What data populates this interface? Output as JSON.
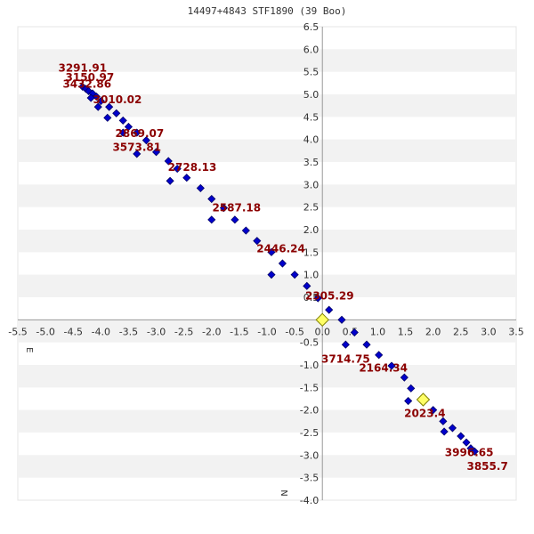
{
  "chart_data": {
    "type": "scatter",
    "title": "14497+4843 STF1890 (39 Boo)",
    "xlabel": "E",
    "ylabel": "N",
    "xlim": [
      -5.5,
      3.5
    ],
    "ylim": [
      -4.0,
      6.5
    ],
    "x_ticks": [
      "-5.5",
      "-5.0",
      "-4.5",
      "-4.0",
      "-3.5",
      "-3.0",
      "-2.5",
      "-2.0",
      "-1.5",
      "-1.0",
      "-0.5",
      "0.0",
      "0.5",
      "1.0",
      "1.5",
      "2.0",
      "2.5",
      "3.0",
      "3.5"
    ],
    "y_ticks": [
      "6.5",
      "6.0",
      "5.5",
      "5.0",
      "4.5",
      "4.0",
      "3.5",
      "3.0",
      "2.5",
      "2.0",
      "1.5",
      "1.0",
      "0.5",
      "0.0",
      "-0.5",
      "-1.0",
      "-1.5",
      "-2.0",
      "-2.5",
      "-3.0",
      "-3.5",
      "-4.0"
    ],
    "grid": "alternating horizontal bands",
    "colors": {
      "points": "#0000cc",
      "labels": "#8b0000",
      "primary": "#ffff66",
      "band": "#f2f2f2",
      "axis": "#999999"
    },
    "primary": {
      "x": 0.0,
      "y": 0.0
    },
    "highlighted": {
      "x": 1.82,
      "y": -1.77
    },
    "series": [
      {
        "points": [
          {
            "x": -4.33,
            "y": 5.17
          },
          {
            "x": -4.27,
            "y": 5.12
          },
          {
            "x": -4.22,
            "y": 5.07
          },
          {
            "x": -4.15,
            "y": 5.02
          },
          {
            "x": -4.08,
            "y": 4.95
          },
          {
            "x": -4.18,
            "y": 4.92
          },
          {
            "x": -4.0,
            "y": 4.85
          },
          {
            "x": -4.05,
            "y": 4.72
          },
          {
            "x": -3.85,
            "y": 4.72
          },
          {
            "x": -3.72,
            "y": 4.58
          },
          {
            "x": -3.88,
            "y": 4.48
          },
          {
            "x": -3.6,
            "y": 4.42
          },
          {
            "x": -3.5,
            "y": 4.28
          },
          {
            "x": -3.35,
            "y": 4.15
          },
          {
            "x": -3.6,
            "y": 4.15
          },
          {
            "x": -3.18,
            "y": 3.98
          },
          {
            "x": -3.0,
            "y": 3.72
          },
          {
            "x": -3.35,
            "y": 3.68
          },
          {
            "x": -2.78,
            "y": 3.52
          },
          {
            "x": -2.62,
            "y": 3.35
          },
          {
            "x": -2.45,
            "y": 3.15
          },
          {
            "x": -2.75,
            "y": 3.08
          },
          {
            "x": -2.2,
            "y": 2.92
          },
          {
            "x": -2.0,
            "y": 2.68
          },
          {
            "x": -1.78,
            "y": 2.48
          },
          {
            "x": -1.58,
            "y": 2.22
          },
          {
            "x": -2.0,
            "y": 2.22
          },
          {
            "x": -1.38,
            "y": 1.98
          },
          {
            "x": -1.18,
            "y": 1.75
          },
          {
            "x": -0.92,
            "y": 1.5
          },
          {
            "x": -0.72,
            "y": 1.25
          },
          {
            "x": -0.5,
            "y": 1.0
          },
          {
            "x": -0.92,
            "y": 1.0
          },
          {
            "x": -0.28,
            "y": 0.75
          },
          {
            "x": -0.08,
            "y": 0.48
          },
          {
            "x": 0.12,
            "y": 0.22
          },
          {
            "x": 0.35,
            "y": 0.0
          },
          {
            "x": 0.42,
            "y": -0.55
          },
          {
            "x": 0.58,
            "y": -0.28
          },
          {
            "x": 0.8,
            "y": -0.55
          },
          {
            "x": 1.02,
            "y": -0.78
          },
          {
            "x": 1.25,
            "y": -1.02
          },
          {
            "x": 1.48,
            "y": -1.28
          },
          {
            "x": 1.6,
            "y": -1.52
          },
          {
            "x": 1.55,
            "y": -1.8
          },
          {
            "x": 2.0,
            "y": -2.0
          },
          {
            "x": 2.18,
            "y": -2.25
          },
          {
            "x": 2.35,
            "y": -2.4
          },
          {
            "x": 2.2,
            "y": -2.48
          },
          {
            "x": 2.5,
            "y": -2.58
          },
          {
            "x": 2.6,
            "y": -2.72
          },
          {
            "x": 2.68,
            "y": -2.85
          },
          {
            "x": 2.75,
            "y": -2.92
          }
        ]
      }
    ],
    "annotations": [
      {
        "text": "3291.91",
        "x": -4.33,
        "y": 5.5
      },
      {
        "text": "3150.97",
        "x": -4.2,
        "y": 5.3
      },
      {
        "text": "3432.86",
        "x": -4.25,
        "y": 5.15
      },
      {
        "text": "3010.02",
        "x": -3.7,
        "y": 4.8
      },
      {
        "text": "2869.07",
        "x": -3.3,
        "y": 4.05
      },
      {
        "text": "3573.81",
        "x": -3.35,
        "y": 3.75
      },
      {
        "text": "2728.13",
        "x": -2.35,
        "y": 3.3
      },
      {
        "text": "2587.18",
        "x": -1.55,
        "y": 2.4
      },
      {
        "text": "2446.24",
        "x": -0.75,
        "y": 1.5
      },
      {
        "text": "2305.29",
        "x": 0.13,
        "y": 0.45
      },
      {
        "text": "3714.75",
        "x": 0.42,
        "y": -0.95
      },
      {
        "text": "2164.34",
        "x": 1.1,
        "y": -1.15
      },
      {
        "text": "2023.4",
        "x": 1.85,
        "y": -2.15
      },
      {
        "text": "3996.65",
        "x": 2.65,
        "y": -3.02
      },
      {
        "text": "3855.7",
        "x": 2.98,
        "y": -3.33
      }
    ]
  }
}
